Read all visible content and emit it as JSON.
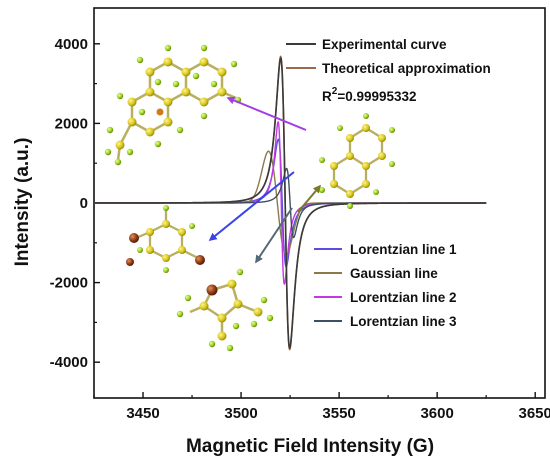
{
  "chart_data": {
    "type": "line",
    "xlabel": "Magnetic Field Intensity (G)",
    "ylabel": "Intensity (a.u.)",
    "xlim": [
      3425,
      3655
    ],
    "ylim": [
      -4900,
      4900
    ],
    "x_ticks": [
      3450,
      3500,
      3550,
      3600,
      3650
    ],
    "y_ticks": [
      -4000,
      -2000,
      0,
      2000,
      4000
    ],
    "legend_top": {
      "position": "top-right",
      "entries": [
        {
          "label": "Experimental curve",
          "color": "#3a3a3a"
        },
        {
          "label": "Theoretical approximation",
          "color": "#9b6a4a"
        }
      ],
      "r2_prefix": "R",
      "r2_sup": "2",
      "r2_value": "=0.99995332"
    },
    "legend_bottom": {
      "position": "bottom-right",
      "entries": [
        {
          "label": "Lorentzian line 1",
          "color": "#5a4ee0"
        },
        {
          "label": "Gaussian line",
          "color": "#8a7a4a"
        },
        {
          "label": "Lorentzian line 2",
          "color": "#c03ae0"
        },
        {
          "label": "Lorentzian line 3",
          "color": "#3e5060"
        }
      ]
    },
    "series": [
      {
        "name": "Experimental curve",
        "color": "#3a3a3a",
        "center": 3522.5,
        "amplitude": 4200,
        "width": 2.3,
        "shape": "lorentz_deriv"
      },
      {
        "name": "Theoretical approximation",
        "color": "#9b6a4a",
        "center": 3522.5,
        "amplitude": 4250,
        "width": 2.3,
        "shape": "lorentz_deriv"
      },
      {
        "name": "Lorentzian line 1",
        "color": "#5a4ee0",
        "center": 3521.0,
        "amplitude": 1850,
        "width": 2.0,
        "shape": "lorentz_deriv"
      },
      {
        "name": "Gaussian line",
        "color": "#8a7a4a",
        "center": 3518.5,
        "amplitude": 1300,
        "width": 4.5,
        "shape": "gauss_deriv"
      },
      {
        "name": "Lorentzian line 2",
        "color": "#c03ae0",
        "center": 3520.5,
        "amplitude": 2350,
        "width": 1.6,
        "shape": "lorentz_deriv"
      },
      {
        "name": "Lorentzian line 3",
        "color": "#3e5060",
        "center": 3525.0,
        "amplitude": 1000,
        "width": 1.8,
        "shape": "lorentz_deriv"
      }
    ],
    "x_range_plotted": [
      3425,
      3625
    ],
    "arrows": [
      {
        "color": "#a13ee6",
        "to_label": "molecule-top-left"
      },
      {
        "color": "#7a7a28",
        "to_label": "molecule-right"
      },
      {
        "color": "#3a43e6",
        "to_label": "molecule-middle-left"
      },
      {
        "color": "#546a74",
        "to_label": "molecule-bottom"
      }
    ],
    "grid": false
  }
}
